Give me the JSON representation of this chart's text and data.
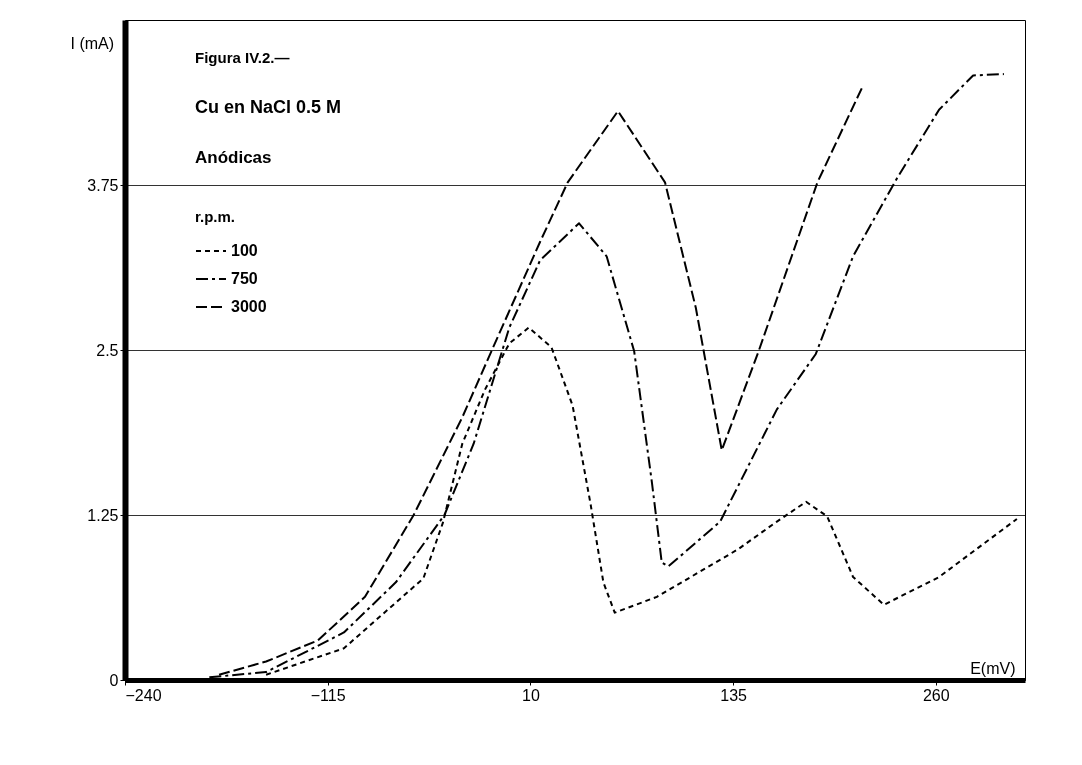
{
  "chart_data": {
    "type": "line",
    "title": "Figura IV.2.—",
    "subtitle": "Cu en NaCl 0.5 M",
    "annotations": [
      "Anódicas"
    ],
    "legend_title": "r.p.m.",
    "xlabel": "E(mV)",
    "ylabel": "I (mA)",
    "xlim": [
      -240,
      315
    ],
    "ylim": [
      0,
      5
    ],
    "xticks": [
      -240,
      -115,
      10,
      135,
      260
    ],
    "yticks": [
      0,
      1.25,
      2.5,
      3.75
    ],
    "grid": "y",
    "legend": "top left",
    "series": [
      {
        "name": "100",
        "color": "#000000",
        "line_style": "dotted",
        "x": [
          -153,
          -105,
          -56,
          -44,
          -32,
          -18,
          -3,
          9,
          23,
          36,
          47,
          55,
          62,
          88,
          138,
          162,
          180,
          193,
          209,
          228,
          262,
          310
        ],
        "values": [
          0.04,
          0.24,
          0.77,
          1.19,
          1.79,
          2.2,
          2.55,
          2.67,
          2.52,
          2.08,
          1.34,
          0.74,
          0.51,
          0.63,
          0.99,
          1.2,
          1.35,
          1.24,
          0.78,
          0.57,
          0.78,
          1.22
        ]
      },
      {
        "name": "750",
        "color": "#000000",
        "line_style": "dashdot",
        "x": [
          -188,
          -153,
          -105,
          -73,
          -43,
          -25,
          -3,
          16,
          40,
          57,
          74,
          85,
          91,
          95,
          112,
          127,
          162,
          186,
          209,
          236,
          262,
          283,
          302
        ],
        "values": [
          0.02,
          0.06,
          0.36,
          0.74,
          1.25,
          1.79,
          2.67,
          3.18,
          3.46,
          3.21,
          2.49,
          1.49,
          0.89,
          0.86,
          1.04,
          1.2,
          2.05,
          2.47,
          3.21,
          3.8,
          4.32,
          4.58,
          4.59
        ]
      },
      {
        "name": "3000",
        "color": "#000000",
        "line_style": "dashed",
        "x": [
          -182,
          -153,
          -121,
          -92,
          -62,
          -32,
          -13,
          16,
          33,
          64,
          93,
          112,
          128,
          151,
          187,
          215
        ],
        "values": [
          0.04,
          0.14,
          0.3,
          0.63,
          1.25,
          1.99,
          2.52,
          3.32,
          3.77,
          4.31,
          3.77,
          2.82,
          1.74,
          2.5,
          3.77,
          4.5
        ]
      }
    ]
  }
}
